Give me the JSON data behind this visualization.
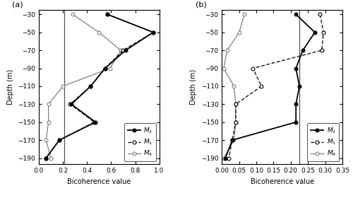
{
  "panel_a": {
    "title": "(a)",
    "xlabel": "Bicoherence value",
    "ylabel": "Depth (m)",
    "ylim": [
      -197,
      -25
    ],
    "xlim": [
      0,
      1.0
    ],
    "xticks": [
      0,
      0.2,
      0.4,
      0.6,
      0.8,
      1.0
    ],
    "yticks": [
      -30,
      -50,
      -70,
      -90,
      -110,
      -130,
      -150,
      -170,
      -190
    ],
    "sig_line": 0.21,
    "M2_depth": [
      -30,
      -50,
      -70,
      -90,
      -110,
      -130,
      -150,
      -170,
      -190
    ],
    "M2_values": [
      0.57,
      0.95,
      0.72,
      0.55,
      0.43,
      0.27,
      0.47,
      0.17,
      0.06
    ],
    "M1_depth": [
      -30,
      -50,
      -70,
      -90,
      -110,
      -130,
      -150,
      -170,
      -190
    ],
    "M1_values": [
      0.57,
      0.95,
      0.7,
      0.55,
      0.43,
      0.26,
      0.46,
      0.17,
      0.06
    ],
    "M4_depth": [
      -30,
      -50,
      -70,
      -90,
      -110,
      -130,
      -150,
      -170,
      -190
    ],
    "M4_values": [
      0.28,
      0.5,
      0.68,
      0.59,
      0.2,
      0.08,
      0.08,
      0.06,
      0.1
    ]
  },
  "panel_b": {
    "title": "(b)",
    "xlabel": "Bicoherence value",
    "ylabel": "Depth (m)",
    "ylim": [
      -197,
      -25
    ],
    "xlim": [
      0,
      0.35
    ],
    "xticks": [
      0,
      0.05,
      0.1,
      0.15,
      0.2,
      0.25,
      0.3,
      0.35
    ],
    "yticks": [
      -30,
      -50,
      -70,
      -90,
      -110,
      -130,
      -150,
      -170,
      -190
    ],
    "sig_line": 0.225,
    "M2_depth": [
      -30,
      -50,
      -70,
      -90,
      -110,
      -130,
      -150,
      -170,
      -190
    ],
    "M2_values": [
      0.215,
      0.27,
      0.235,
      0.215,
      0.225,
      0.215,
      0.215,
      0.03,
      0.01
    ],
    "M1_depth": [
      -30,
      -50,
      -70,
      -90,
      -110,
      -130,
      -150,
      -170,
      -190
    ],
    "M1_values": [
      0.285,
      0.295,
      0.29,
      0.09,
      0.115,
      0.04,
      0.04,
      0.03,
      0.02
    ],
    "M4_depth": [
      -30,
      -50,
      -70,
      -90,
      -110,
      -130,
      -150,
      -170,
      -190
    ],
    "M4_values": [
      0.065,
      0.05,
      0.015,
      0.005,
      0.035,
      0.04,
      0.04,
      0.035,
      0.005
    ]
  }
}
